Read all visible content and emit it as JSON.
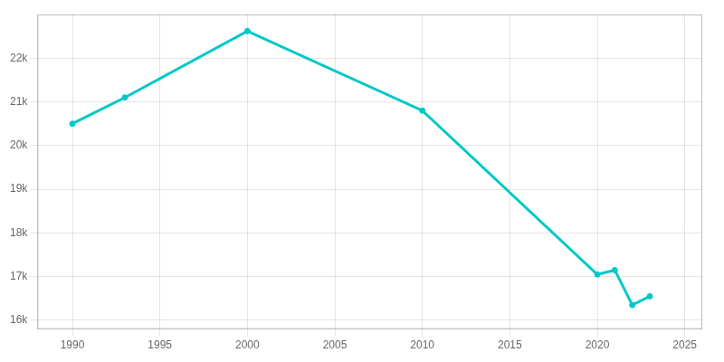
{
  "chart_data": {
    "type": "line",
    "x": [
      1990,
      1993,
      2000,
      2010,
      2020,
      2021,
      2022,
      2023
    ],
    "values": [
      20500,
      21100,
      22620,
      20800,
      17050,
      17150,
      16350,
      16550
    ],
    "color": "#00c8c8",
    "marker": "circle",
    "xlim": [
      1988,
      2026
    ],
    "xticks": [
      1990,
      1995,
      2000,
      2005,
      2010,
      2015,
      2020,
      2025
    ],
    "ylim": [
      15800,
      23000
    ],
    "yticks": [
      {
        "value": 16000,
        "label": "16k"
      },
      {
        "value": 17000,
        "label": "17k"
      },
      {
        "value": 18000,
        "label": "18k"
      },
      {
        "value": 19000,
        "label": "19k"
      },
      {
        "value": 20000,
        "label": "20k"
      },
      {
        "value": 21000,
        "label": "21k"
      },
      {
        "value": 22000,
        "label": "22k"
      }
    ],
    "grid": true
  }
}
